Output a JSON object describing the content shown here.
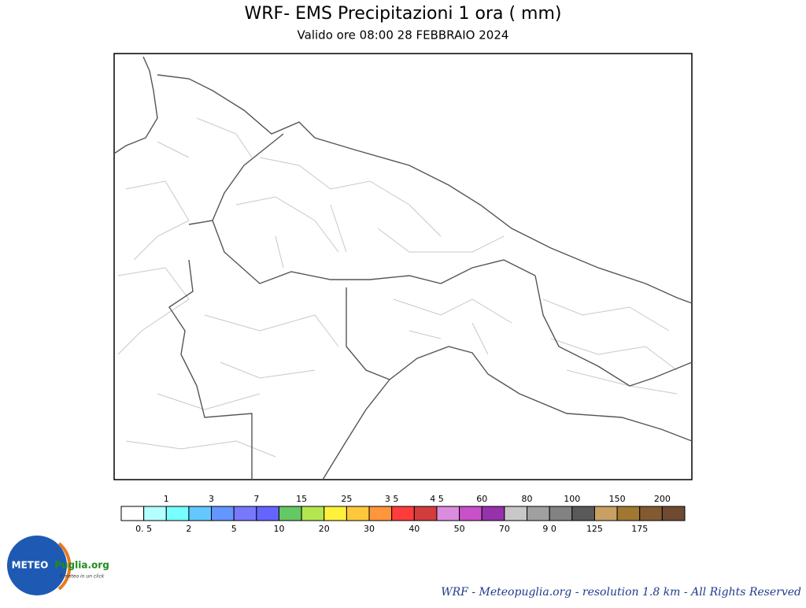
{
  "header": {
    "title": "WRF- EMS Precipitazioni 1 ora ( mm)",
    "subtitle": "Valido ore 08:00 28 FEBBRAIO 2024"
  },
  "legend": {
    "colors": [
      "#ffffff",
      "#b4ffff",
      "#78ffff",
      "#64c8ff",
      "#6496ff",
      "#7878ff",
      "#6464ff",
      "#64c864",
      "#b4e650",
      "#fff03c",
      "#ffc83c",
      "#ff963c",
      "#ff3c3c",
      "#d23c3c",
      "#dc8cdc",
      "#c850c8",
      "#9632aa",
      "#c8c8c8",
      "#a0a0a0",
      "#828282",
      "#5a5a5a",
      "#c8a064",
      "#a07832",
      "#825a32",
      "#6e4a32"
    ],
    "labels": [
      "0. 5",
      "1",
      "2",
      "3",
      "5",
      "7",
      "10",
      "15",
      "20",
      "25",
      "30",
      "3 5",
      "40",
      "4 5",
      "50",
      "60",
      "70",
      "80",
      "9 0",
      "100",
      "125",
      "150",
      "175",
      "200"
    ]
  },
  "logo": {
    "name": "METEO",
    "brand": "Puglia.org",
    "tagline": "il meteo in un click"
  },
  "footer": "WRF - Meteopuglia.org - resolution 1.8 km - All Rights Reserved"
}
